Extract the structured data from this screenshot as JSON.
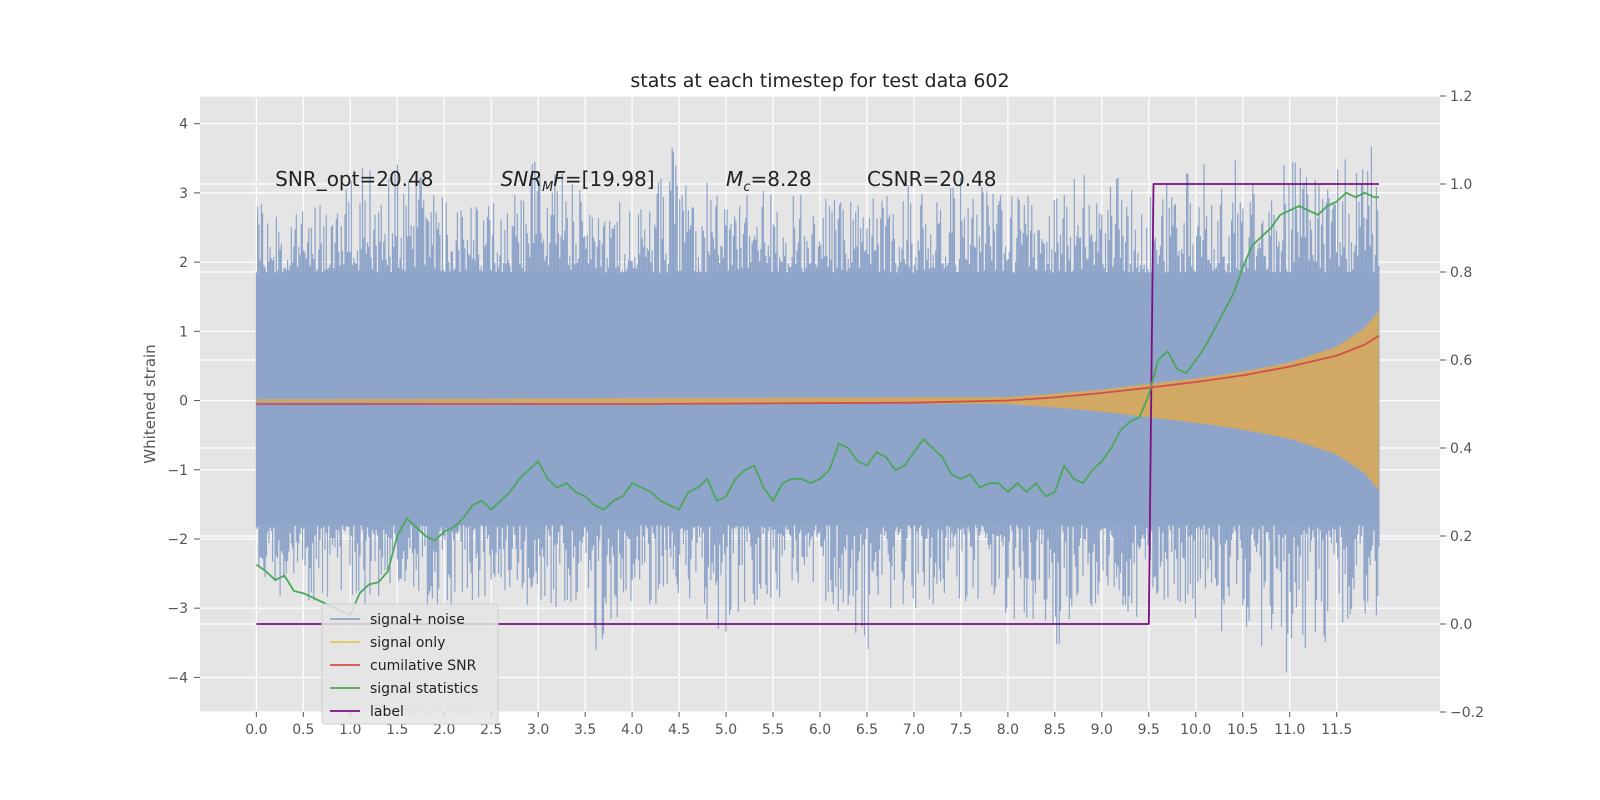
{
  "chart_data": {
    "type": "line",
    "title": "stats at each timestep for test data 602",
    "xlabel": "",
    "ylabel": "Whitened strain",
    "xlim": [
      -0.6,
      12.6
    ],
    "ylim": [
      -4.5,
      4.4
    ],
    "y2lim": [
      -0.2,
      1.2
    ],
    "x_ticks": [
      0.0,
      0.5,
      1.0,
      1.5,
      2.0,
      2.5,
      3.0,
      3.5,
      4.0,
      4.5,
      5.0,
      5.5,
      6.0,
      6.5,
      7.0,
      7.5,
      8.0,
      8.5,
      9.0,
      9.5,
      10.0,
      10.5,
      11.0,
      11.5
    ],
    "x_tick_labels": [
      "0.0",
      "0.5",
      "1.0",
      "1.5",
      "2.0",
      "2.5",
      "3.0",
      "3.5",
      "4.0",
      "4.5",
      "5.0",
      "5.5",
      "6.0",
      "6.5",
      "7.0",
      "7.5",
      "8.0",
      "8.5",
      "9.0",
      "9.5",
      "10.0",
      "10.5",
      "11.0",
      "11.5"
    ],
    "y_ticks": [
      -4,
      -3,
      -2,
      -1,
      0,
      1,
      2,
      3,
      4
    ],
    "y_tick_labels": [
      "−4",
      "−3",
      "−2",
      "−1",
      "0",
      "1",
      "2",
      "3",
      "4"
    ],
    "y2_ticks": [
      -0.2,
      0.0,
      0.2,
      0.4,
      0.6,
      0.8,
      1.0,
      1.2
    ],
    "y2_tick_labels": [
      "−0.2",
      "0.0",
      "0.2",
      "0.4",
      "0.6",
      "0.8",
      "1.0",
      "1.2"
    ],
    "grid": true,
    "legend_position": "lower-left",
    "annotations": [
      {
        "text": "SNR_opt=20.48",
        "x": 0.2,
        "y": 3.1
      },
      {
        "text": "SNR_MF=[19.98]",
        "x": 2.6,
        "y": 3.1
      },
      {
        "text": "M_c=8.28",
        "x": 5.0,
        "y": 3.1
      },
      {
        "text": "CSNR=20.48",
        "x": 6.5,
        "y": 3.1
      }
    ],
    "annotation_parts": [
      {
        "main": "SNR",
        "sub": "M",
        "rest": "F=[19.98]"
      },
      {
        "main": "M",
        "sub": "c",
        "rest": "=8.28"
      }
    ],
    "annotation_plain": [
      "SNR_opt=20.48",
      "CSNR=20.48"
    ],
    "legend_overlap_text": "cumilative SNR",
    "series": [
      {
        "name": "signal+ noise",
        "axis": "left",
        "color": "#8ea4c9",
        "style": "noise-band",
        "band_typical": [
          -1.8,
          1.85
        ],
        "x": [
          0.0,
          0.3,
          0.6,
          0.9,
          1.0,
          1.3,
          1.6,
          2.0,
          2.5,
          3.0,
          3.5,
          3.6,
          4.0,
          4.5,
          5.0,
          5.5,
          6.0,
          6.5,
          6.7,
          7.0,
          7.5,
          8.0,
          8.5,
          8.6,
          9.0,
          9.5,
          10.0,
          10.5,
          10.8,
          11.0,
          11.2,
          11.5,
          11.8,
          11.95
        ],
        "peaks": [
          3.05,
          2.5,
          3.1,
          2.7,
          3.5,
          3.3,
          3.7,
          2.9,
          3.0,
          3.6,
          3.1,
          2.8,
          3.0,
          4.0,
          2.9,
          3.1,
          3.05,
          2.9,
          3.2,
          3.1,
          3.3,
          3.0,
          2.95,
          3.1,
          3.5,
          3.0,
          3.4,
          3.5,
          3.2,
          3.6,
          3.3,
          3.4,
          3.8,
          3.65
        ],
        "troughs": [
          -2.6,
          -3.0,
          -2.9,
          -3.1,
          -3.2,
          -3.0,
          -2.9,
          -3.1,
          -2.8,
          -3.0,
          -3.2,
          -3.65,
          -3.0,
          -2.9,
          -3.4,
          -3.0,
          -2.9,
          -3.65,
          -3.0,
          -3.1,
          -2.9,
          -3.1,
          -3.65,
          -3.4,
          -3.0,
          -3.2,
          -3.3,
          -3.5,
          -3.7,
          -4.1,
          -3.7,
          -3.4,
          -3.4,
          -3.3
        ]
      },
      {
        "name": "signal only",
        "axis": "left",
        "color": "#e8c25a",
        "style": "envelope",
        "x": [
          0.0,
          8.0,
          8.5,
          9.0,
          9.5,
          10.0,
          10.5,
          11.0,
          11.5,
          11.8,
          11.95
        ],
        "amplitude": [
          0.02,
          0.05,
          0.1,
          0.16,
          0.24,
          0.32,
          0.42,
          0.55,
          0.78,
          1.05,
          1.3
        ]
      },
      {
        "name": "cumilative SNR",
        "axis": "right",
        "color": "#d1504a",
        "x": [
          0.0,
          4.0,
          7.0,
          8.0,
          8.5,
          9.0,
          9.5,
          10.0,
          10.5,
          11.0,
          11.5,
          11.8,
          11.95
        ],
        "values": [
          0.5,
          0.5,
          0.503,
          0.508,
          0.515,
          0.525,
          0.537,
          0.55,
          0.565,
          0.585,
          0.61,
          0.635,
          0.655
        ]
      },
      {
        "name": "signal statistics",
        "axis": "right",
        "color": "#4aa85a",
        "x": [
          0.0,
          0.1,
          0.2,
          0.3,
          0.4,
          0.5,
          0.6,
          0.7,
          0.8,
          0.9,
          1.0,
          1.1,
          1.2,
          1.3,
          1.4,
          1.5,
          1.6,
          1.7,
          1.8,
          1.9,
          2.0,
          2.1,
          2.2,
          2.3,
          2.4,
          2.5,
          2.6,
          2.7,
          2.8,
          2.9,
          3.0,
          3.1,
          3.2,
          3.3,
          3.4,
          3.5,
          3.6,
          3.7,
          3.8,
          3.9,
          4.0,
          4.1,
          4.2,
          4.3,
          4.4,
          4.5,
          4.6,
          4.7,
          4.8,
          4.9,
          5.0,
          5.1,
          5.2,
          5.3,
          5.4,
          5.5,
          5.6,
          5.7,
          5.8,
          5.9,
          6.0,
          6.1,
          6.2,
          6.3,
          6.4,
          6.5,
          6.6,
          6.7,
          6.8,
          6.9,
          7.0,
          7.1,
          7.2,
          7.3,
          7.4,
          7.5,
          7.6,
          7.7,
          7.8,
          7.9,
          8.0,
          8.1,
          8.2,
          8.3,
          8.4,
          8.5,
          8.6,
          8.7,
          8.8,
          8.9,
          9.0,
          9.1,
          9.2,
          9.3,
          9.4,
          9.5,
          9.6,
          9.7,
          9.8,
          9.9,
          10.0,
          10.1,
          10.2,
          10.3,
          10.4,
          10.5,
          10.6,
          10.7,
          10.8,
          10.9,
          11.0,
          11.1,
          11.2,
          11.3,
          11.4,
          11.5,
          11.6,
          11.7,
          11.8,
          11.9,
          11.95
        ],
        "values": [
          0.135,
          0.12,
          0.1,
          0.11,
          0.075,
          0.07,
          0.06,
          0.05,
          0.04,
          0.03,
          0.02,
          0.07,
          0.09,
          0.095,
          0.12,
          0.2,
          0.24,
          0.22,
          0.2,
          0.19,
          0.21,
          0.22,
          0.24,
          0.27,
          0.28,
          0.26,
          0.28,
          0.3,
          0.33,
          0.35,
          0.37,
          0.33,
          0.31,
          0.32,
          0.3,
          0.29,
          0.27,
          0.26,
          0.28,
          0.29,
          0.32,
          0.31,
          0.3,
          0.28,
          0.27,
          0.26,
          0.3,
          0.31,
          0.33,
          0.28,
          0.29,
          0.33,
          0.35,
          0.36,
          0.31,
          0.28,
          0.32,
          0.33,
          0.33,
          0.32,
          0.33,
          0.35,
          0.41,
          0.4,
          0.37,
          0.36,
          0.39,
          0.38,
          0.35,
          0.36,
          0.39,
          0.42,
          0.4,
          0.38,
          0.34,
          0.33,
          0.34,
          0.31,
          0.32,
          0.32,
          0.3,
          0.32,
          0.3,
          0.32,
          0.29,
          0.3,
          0.36,
          0.33,
          0.32,
          0.35,
          0.37,
          0.4,
          0.44,
          0.46,
          0.47,
          0.52,
          0.6,
          0.62,
          0.58,
          0.57,
          0.6,
          0.63,
          0.67,
          0.71,
          0.75,
          0.81,
          0.86,
          0.88,
          0.9,
          0.93,
          0.94,
          0.95,
          0.94,
          0.93,
          0.95,
          0.96,
          0.98,
          0.97,
          0.98,
          0.97,
          0.97
        ],
        "values_note_excluded": true
      },
      {
        "name": "label",
        "axis": "right",
        "color": "#7b0f82",
        "x": [
          0.0,
          9.5,
          9.55,
          11.95
        ],
        "values": [
          0.0,
          0.0,
          1.0,
          1.0
        ]
      }
    ]
  }
}
